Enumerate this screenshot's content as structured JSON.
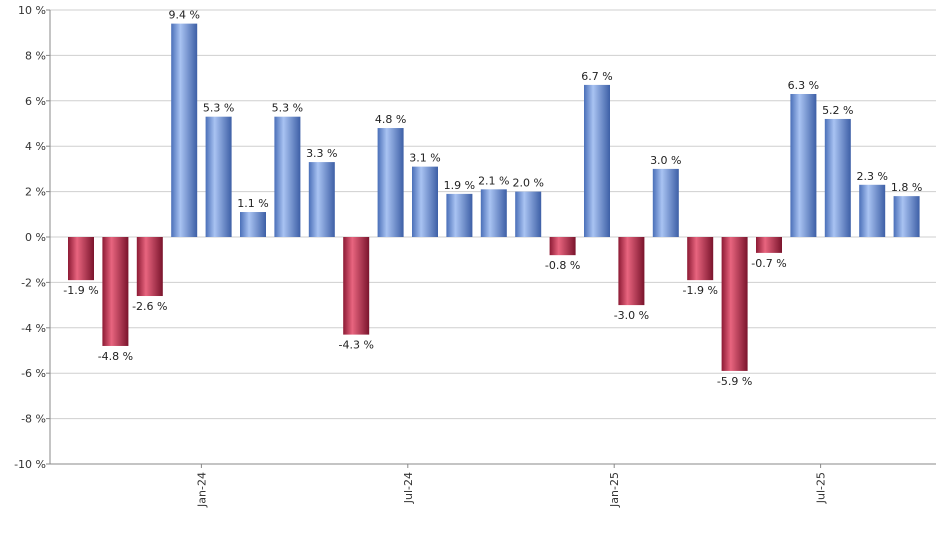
{
  "colors": {
    "positive": "#6f96e0",
    "negative": "#c8304f",
    "grid": "#cfcfcf",
    "axis": "#888888"
  },
  "chart_data": {
    "type": "bar",
    "value_suffix": " %",
    "ylim": [
      -10,
      10
    ],
    "y_ticks": [
      -10,
      -8,
      -6,
      -4,
      -2,
      0,
      2,
      4,
      6,
      8,
      10
    ],
    "grid": true,
    "legend": "none",
    "x_tick_labels": [
      {
        "label": "Jan-24",
        "after_index": 3
      },
      {
        "label": "Jul-24",
        "after_index": 9
      },
      {
        "label": "Jan-25",
        "after_index": 15
      },
      {
        "label": "Jul-25",
        "after_index": 21
      }
    ],
    "values": [
      -1.9,
      -4.8,
      -2.6,
      9.4,
      5.3,
      1.1,
      5.3,
      3.3,
      -4.3,
      4.8,
      3.1,
      1.9,
      2.1,
      2.0,
      -0.8,
      6.7,
      -3.0,
      3.0,
      -1.9,
      -5.9,
      -0.7,
      6.3,
      5.2,
      2.3,
      1.8
    ],
    "data_labels": [
      "-1.9 %",
      "-4.8 %",
      "-2.6 %",
      "9.4 %",
      "5.3 %",
      "1.1 %",
      "5.3 %",
      "3.3 %",
      "-4.3 %",
      "4.8 %",
      "3.1 %",
      "1.9 %",
      "2.1 %",
      "2.0 %",
      "-0.8 %",
      "6.7 %",
      "-3.0 %",
      "3.0 %",
      "-1.9 %",
      "-5.9 %",
      "-0.7 %",
      "6.3 %",
      "5.2 %",
      "2.3 %",
      "1.8 %"
    ]
  }
}
